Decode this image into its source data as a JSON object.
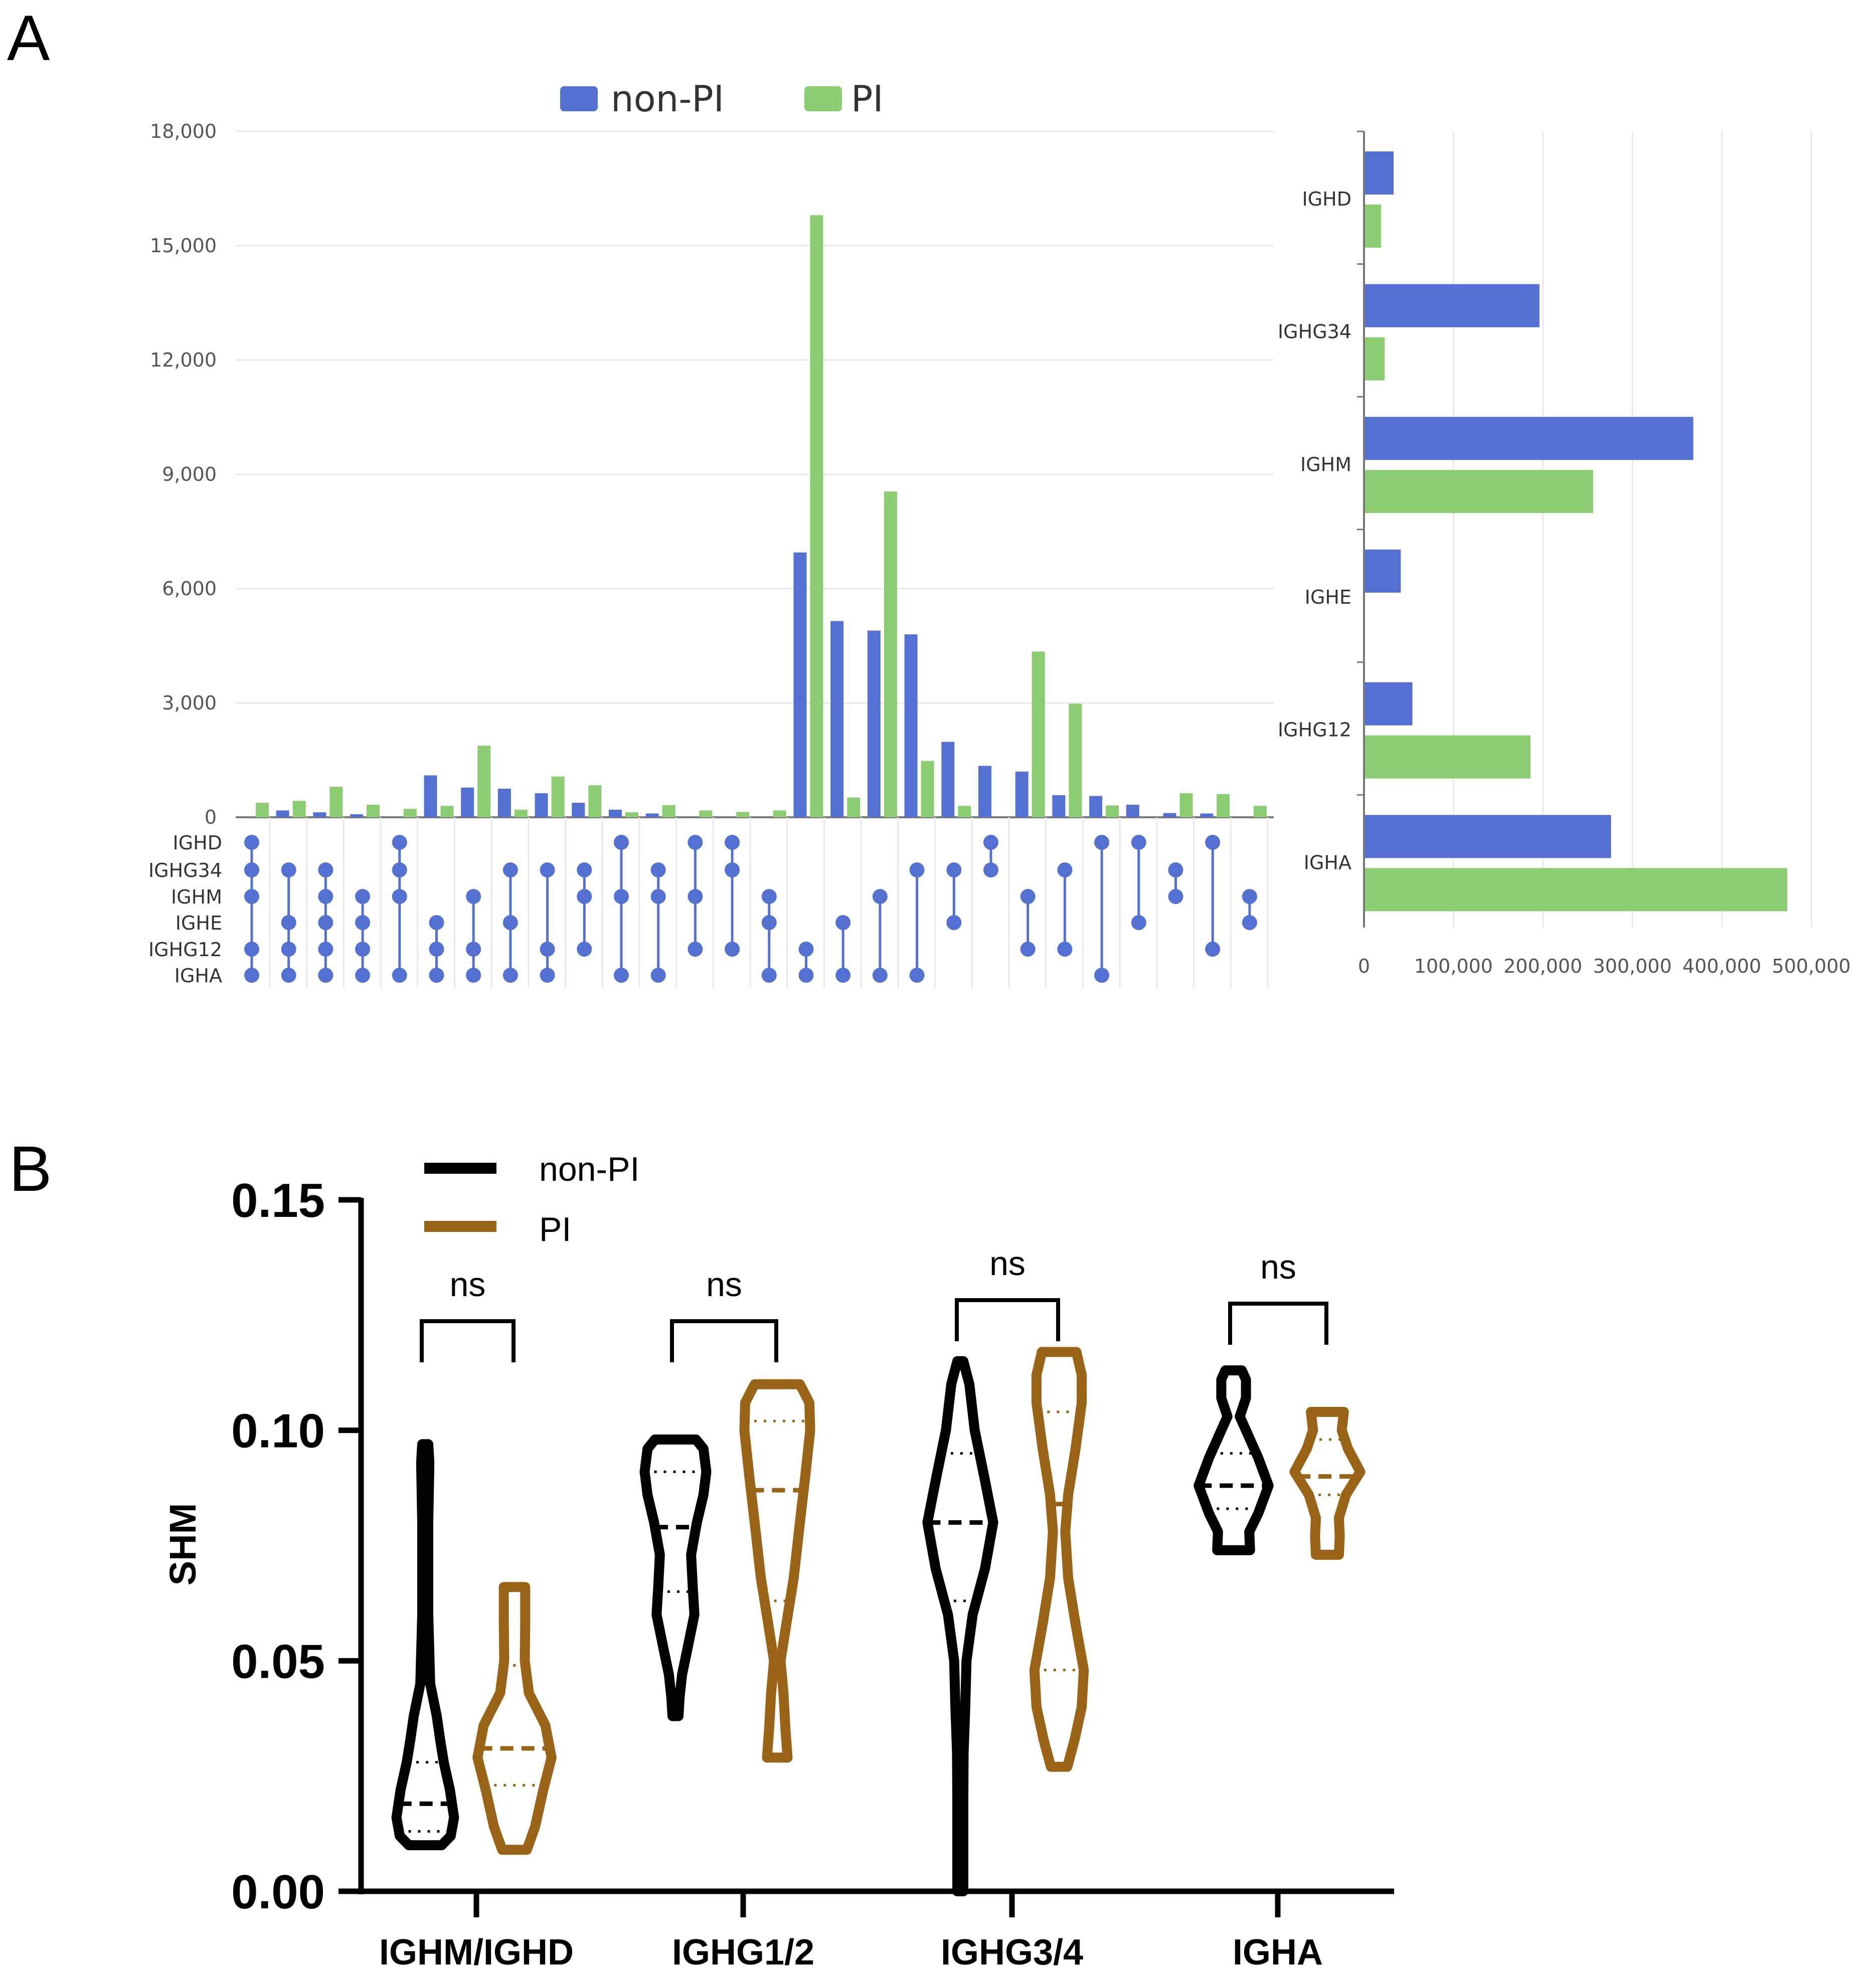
{
  "panels": {
    "a": "A",
    "b": "B"
  },
  "colors": {
    "non_pi_a": "#5470d0",
    "pi_a": "#8ccc72",
    "non_pi_b": "#000000",
    "pi_b": "#9a6418",
    "grid": "#e8e8e8",
    "axis_a": "#777777"
  },
  "chart_data": [
    {
      "id": "upset-intersections",
      "type": "bar",
      "title": "",
      "legend": [
        "non-PI",
        "PI"
      ],
      "legend_position": "top-center",
      "ylim": [
        0,
        18000
      ],
      "yticks": [
        0,
        3000,
        6000,
        9000,
        12000,
        15000,
        18000
      ],
      "ytick_labels": [
        "0",
        "3,000",
        "6,000",
        "9,000",
        "12,000",
        "15,000",
        "18,000"
      ],
      "sets": [
        "IGHD",
        "IGHG34",
        "IGHM",
        "IGHE",
        "IGHG12",
        "IGHA"
      ],
      "intersections": [
        {
          "members": [
            "IGHD",
            "IGHG34",
            "IGHM",
            "IGHG12",
            "IGHA"
          ],
          "non_pi": 0,
          "pi": 380
        },
        {
          "members": [
            "IGHG34",
            "IGHE",
            "IGHG12",
            "IGHA"
          ],
          "non_pi": 180,
          "pi": 430
        },
        {
          "members": [
            "IGHG34",
            "IGHM",
            "IGHE",
            "IGHG12",
            "IGHA"
          ],
          "non_pi": 130,
          "pi": 800
        },
        {
          "members": [
            "IGHM",
            "IGHE",
            "IGHG12",
            "IGHA"
          ],
          "non_pi": 80,
          "pi": 330
        },
        {
          "members": [
            "IGHD",
            "IGHG34",
            "IGHM",
            "IGHA"
          ],
          "non_pi": 0,
          "pi": 220
        },
        {
          "members": [
            "IGHE",
            "IGHG12",
            "IGHA"
          ],
          "non_pi": 1100,
          "pi": 300
        },
        {
          "members": [
            "IGHM",
            "IGHG12",
            "IGHA"
          ],
          "non_pi": 780,
          "pi": 1880
        },
        {
          "members": [
            "IGHG34",
            "IGHE",
            "IGHA"
          ],
          "non_pi": 750,
          "pi": 200
        },
        {
          "members": [
            "IGHG34",
            "IGHG12",
            "IGHA"
          ],
          "non_pi": 630,
          "pi": 1070
        },
        {
          "members": [
            "IGHG34",
            "IGHM",
            "IGHG12"
          ],
          "non_pi": 380,
          "pi": 840
        },
        {
          "members": [
            "IGHD",
            "IGHM",
            "IGHA"
          ],
          "non_pi": 200,
          "pi": 130
        },
        {
          "members": [
            "IGHG34",
            "IGHM",
            "IGHA"
          ],
          "non_pi": 100,
          "pi": 320
        },
        {
          "members": [
            "IGHD",
            "IGHM",
            "IGHG12"
          ],
          "non_pi": 0,
          "pi": 180
        },
        {
          "members": [
            "IGHD",
            "IGHG34",
            "IGHG12"
          ],
          "non_pi": 0,
          "pi": 140
        },
        {
          "members": [
            "IGHM",
            "IGHE",
            "IGHA"
          ],
          "non_pi": 0,
          "pi": 180
        },
        {
          "members": [
            "IGHG12",
            "IGHA"
          ],
          "non_pi": 6950,
          "pi": 15800
        },
        {
          "members": [
            "IGHE",
            "IGHA"
          ],
          "non_pi": 5150,
          "pi": 520
        },
        {
          "members": [
            "IGHM",
            "IGHA"
          ],
          "non_pi": 4900,
          "pi": 8550
        },
        {
          "members": [
            "IGHG34",
            "IGHA"
          ],
          "non_pi": 4800,
          "pi": 1480
        },
        {
          "members": [
            "IGHG34",
            "IGHE"
          ],
          "non_pi": 1980,
          "pi": 300
        },
        {
          "members": [
            "IGHD",
            "IGHG34"
          ],
          "non_pi": 1350,
          "pi": 0
        },
        {
          "members": [
            "IGHM",
            "IGHG12"
          ],
          "non_pi": 1200,
          "pi": 4350
        },
        {
          "members": [
            "IGHG34",
            "IGHG12"
          ],
          "non_pi": 580,
          "pi": 2980
        },
        {
          "members": [
            "IGHD",
            "IGHA"
          ],
          "non_pi": 560,
          "pi": 310
        },
        {
          "members": [
            "IGHD",
            "IGHE"
          ],
          "non_pi": 330,
          "pi": 0
        },
        {
          "members": [
            "IGHG34",
            "IGHM"
          ],
          "non_pi": 110,
          "pi": 630
        },
        {
          "members": [
            "IGHD",
            "IGHG12"
          ],
          "non_pi": 100,
          "pi": 610
        },
        {
          "members": [
            "IGHM",
            "IGHE"
          ],
          "non_pi": 0,
          "pi": 300
        }
      ]
    },
    {
      "id": "set-sizes",
      "type": "bar",
      "orientation": "horizontal",
      "categories": [
        "IGHD",
        "IGHG34",
        "IGHM",
        "IGHE",
        "IGHG12",
        "IGHA"
      ],
      "series": [
        {
          "name": "non-PI",
          "values": [
            32000,
            195000,
            367000,
            40000,
            53000,
            275000
          ]
        },
        {
          "name": "PI",
          "values": [
            18000,
            22000,
            255000,
            0,
            185000,
            472000
          ]
        }
      ],
      "xlim": [
        0,
        500000
      ],
      "xticks": [
        0,
        100000,
        200000,
        300000,
        400000,
        500000
      ],
      "xtick_labels": [
        "0",
        "100,000",
        "200,000",
        "300,000",
        "400,000",
        "500,000"
      ]
    },
    {
      "id": "shm-violin",
      "type": "violin",
      "ylabel": "SHM",
      "ylim": [
        0,
        0.15
      ],
      "yticks": [
        0.0,
        0.05,
        0.1,
        0.15
      ],
      "ytick_labels": [
        "0.00",
        "0.05",
        "0.10",
        "0.15"
      ],
      "categories": [
        "IGHM/IGHD",
        "IGHG1/2",
        "IGHG3/4",
        "IGHA"
      ],
      "legend": [
        "non-PI",
        "PI"
      ],
      "legend_position": "top-left",
      "annotations": [
        "ns",
        "ns",
        "ns",
        "ns"
      ],
      "series": [
        {
          "name": "non-PI",
          "violins": [
            {
              "min": 0.01,
              "max": 0.097,
              "median": 0.019,
              "q1": 0.013,
              "q3": 0.028,
              "profile": [
                [
                  0.01,
                  0.4
                ],
                [
                  0.012,
                  0.62
                ],
                [
                  0.016,
                  0.7
                ],
                [
                  0.022,
                  0.6
                ],
                [
                  0.028,
                  0.45
                ],
                [
                  0.033,
                  0.36
                ],
                [
                  0.038,
                  0.28
                ],
                [
                  0.045,
                  0.12
                ],
                [
                  0.06,
                  0.06
                ],
                [
                  0.08,
                  0.06
                ],
                [
                  0.093,
                  0.1
                ],
                [
                  0.097,
                  0.05
                ]
              ]
            },
            {
              "min": 0.038,
              "max": 0.098,
              "median": 0.079,
              "q1": 0.065,
              "q3": 0.091,
              "profile": [
                [
                  0.038,
                  0.05
                ],
                [
                  0.042,
                  0.1
                ],
                [
                  0.047,
                  0.16
                ],
                [
                  0.053,
                  0.3
                ],
                [
                  0.06,
                  0.46
                ],
                [
                  0.066,
                  0.42
                ],
                [
                  0.073,
                  0.38
                ],
                [
                  0.08,
                  0.52
                ],
                [
                  0.086,
                  0.68
                ],
                [
                  0.091,
                  0.75
                ],
                [
                  0.096,
                  0.68
                ],
                [
                  0.098,
                  0.5
                ]
              ]
            },
            {
              "min": 0.0,
              "max": 0.115,
              "median": 0.08,
              "q1": 0.063,
              "q3": 0.095,
              "profile": [
                [
                  0.0,
                  0.04
                ],
                [
                  0.01,
                  0.05
                ],
                [
                  0.02,
                  0.05
                ],
                [
                  0.03,
                  0.08
                ],
                [
                  0.04,
                  0.12
                ],
                [
                  0.05,
                  0.15
                ],
                [
                  0.06,
                  0.3
                ],
                [
                  0.07,
                  0.6
                ],
                [
                  0.08,
                  0.8
                ],
                [
                  0.09,
                  0.58
                ],
                [
                  0.1,
                  0.35
                ],
                [
                  0.11,
                  0.22
                ],
                [
                  0.115,
                  0.05
                ]
              ]
            },
            {
              "min": 0.074,
              "max": 0.113,
              "median": 0.088,
              "q1": 0.083,
              "q3": 0.095,
              "profile": [
                [
                  0.074,
                  0.4
                ],
                [
                  0.078,
                  0.38
                ],
                [
                  0.082,
                  0.6
                ],
                [
                  0.088,
                  0.85
                ],
                [
                  0.094,
                  0.6
                ],
                [
                  0.099,
                  0.35
                ],
                [
                  0.103,
                  0.15
                ],
                [
                  0.107,
                  0.3
                ],
                [
                  0.111,
                  0.3
                ],
                [
                  0.113,
                  0.2
                ]
              ]
            }
          ]
        },
        {
          "name": "PI",
          "violins": [
            {
              "min": 0.009,
              "max": 0.066,
              "median": 0.031,
              "q1": 0.023,
              "q3": 0.049,
              "profile": [
                [
                  0.009,
                  0.3
                ],
                [
                  0.014,
                  0.5
                ],
                [
                  0.022,
                  0.7
                ],
                [
                  0.029,
                  0.9
                ],
                [
                  0.036,
                  0.75
                ],
                [
                  0.043,
                  0.35
                ],
                [
                  0.05,
                  0.25
                ],
                [
                  0.058,
                  0.26
                ],
                [
                  0.066,
                  0.26
                ]
              ]
            },
            {
              "min": 0.029,
              "max": 0.11,
              "median": 0.087,
              "q1": 0.063,
              "q3": 0.102,
              "profile": [
                [
                  0.029,
                  0.25
                ],
                [
                  0.035,
                  0.2
                ],
                [
                  0.043,
                  0.15
                ],
                [
                  0.05,
                  0.08
                ],
                [
                  0.058,
                  0.22
                ],
                [
                  0.068,
                  0.4
                ],
                [
                  0.08,
                  0.55
                ],
                [
                  0.09,
                  0.68
                ],
                [
                  0.1,
                  0.8
                ],
                [
                  0.106,
                  0.78
                ],
                [
                  0.11,
                  0.55
                ]
              ]
            },
            {
              "min": 0.027,
              "max": 0.117,
              "median": 0.084,
              "q1": 0.048,
              "q3": 0.104,
              "profile": [
                [
                  0.027,
                  0.2
                ],
                [
                  0.033,
                  0.38
                ],
                [
                  0.04,
                  0.55
                ],
                [
                  0.048,
                  0.6
                ],
                [
                  0.058,
                  0.4
                ],
                [
                  0.068,
                  0.22
                ],
                [
                  0.078,
                  0.15
                ],
                [
                  0.086,
                  0.22
                ],
                [
                  0.096,
                  0.4
                ],
                [
                  0.106,
                  0.55
                ],
                [
                  0.112,
                  0.55
                ],
                [
                  0.117,
                  0.42
                ]
              ]
            },
            {
              "min": 0.073,
              "max": 0.104,
              "median": 0.09,
              "q1": 0.086,
              "q3": 0.098,
              "profile": [
                [
                  0.073,
                  0.28
                ],
                [
                  0.077,
                  0.3
                ],
                [
                  0.081,
                  0.28
                ],
                [
                  0.086,
                  0.45
                ],
                [
                  0.091,
                  0.8
                ],
                [
                  0.096,
                  0.5
                ],
                [
                  0.1,
                  0.35
                ],
                [
                  0.104,
                  0.4
                ]
              ]
            }
          ]
        }
      ]
    }
  ]
}
